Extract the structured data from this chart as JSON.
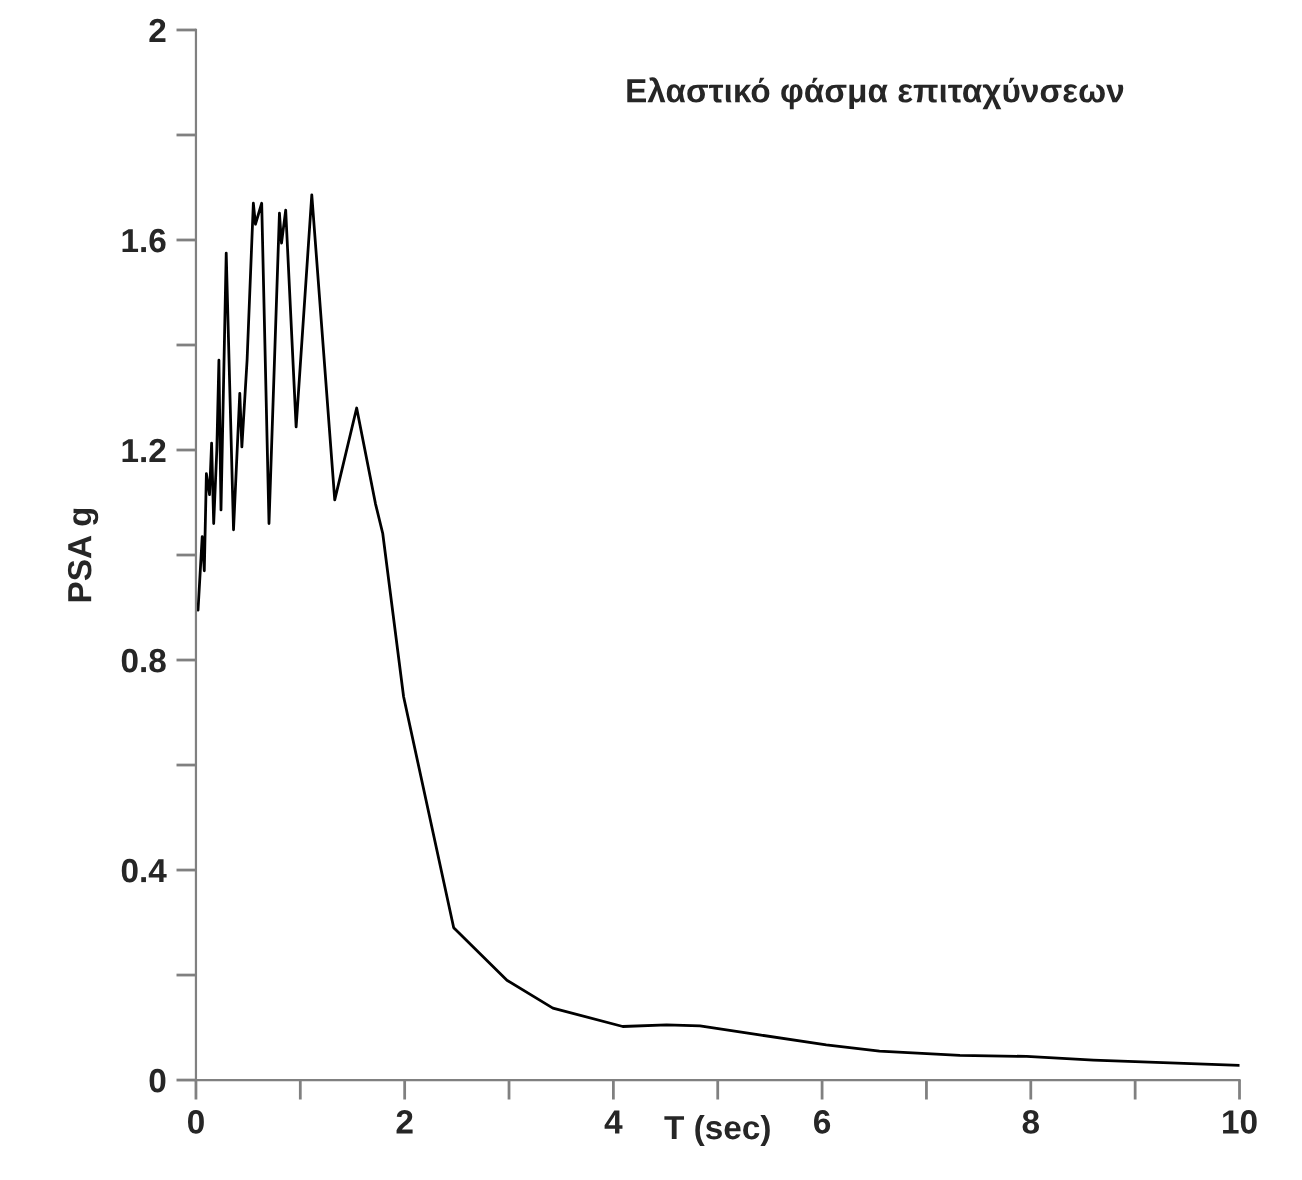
{
  "chart_data": {
    "type": "line",
    "title": "Ελαστικό φάσμα επιταχύνσεων",
    "xlabel": "T (sec)",
    "ylabel": "PSA g",
    "series": [
      {
        "color": "#000000",
        "x": [
          0.02,
          0.06,
          0.08,
          0.1,
          0.13,
          0.15,
          0.17,
          0.2,
          0.22,
          0.24,
          0.29,
          0.36,
          0.42,
          0.44,
          0.49,
          0.55,
          0.57,
          0.63,
          0.7,
          0.8,
          0.82,
          0.86,
          0.96,
          1.11,
          1.33,
          1.54,
          1.72,
          1.79,
          1.99,
          2.47,
          2.98,
          3.42,
          4.09,
          4.51,
          4.83,
          5.4,
          6.04,
          6.55,
          7.32,
          7.96,
          8.6,
          10.0
        ],
        "values": [
          0.895,
          1.035,
          0.97,
          1.155,
          1.115,
          1.213,
          1.06,
          1.2,
          1.371,
          1.086,
          1.575,
          1.048,
          1.308,
          1.206,
          1.371,
          1.67,
          1.63,
          1.67,
          1.06,
          1.651,
          1.594,
          1.657,
          1.244,
          1.686,
          1.105,
          1.28,
          1.098,
          1.041,
          0.73,
          0.29,
          0.19,
          0.137,
          0.102,
          0.105,
          0.103,
          0.086,
          0.067,
          0.055,
          0.047,
          0.045,
          0.038,
          0.028
        ]
      }
    ],
    "xlim": [
      0,
      10
    ],
    "ylim": [
      0,
      2
    ],
    "xticks": [
      0,
      {
        "value": 1,
        "label": null
      },
      2,
      {
        "value": 3,
        "label": null
      },
      4,
      {
        "value": 5,
        "label": null
      },
      6,
      {
        "value": 7,
        "label": null
      },
      8,
      {
        "value": 9,
        "label": null
      },
      10
    ],
    "yticks": [
      0,
      {
        "value": 0.2,
        "label": null
      },
      0.4,
      {
        "value": 0.6,
        "label": null
      },
      0.8,
      {
        "value": 1.0,
        "label": null
      },
      1.2,
      {
        "value": 1.4,
        "label": null
      },
      1.6,
      {
        "value": 1.8,
        "label": null
      },
      2
    ],
    "grid": false,
    "legend": false,
    "marker": "none",
    "line_style": "solid"
  }
}
